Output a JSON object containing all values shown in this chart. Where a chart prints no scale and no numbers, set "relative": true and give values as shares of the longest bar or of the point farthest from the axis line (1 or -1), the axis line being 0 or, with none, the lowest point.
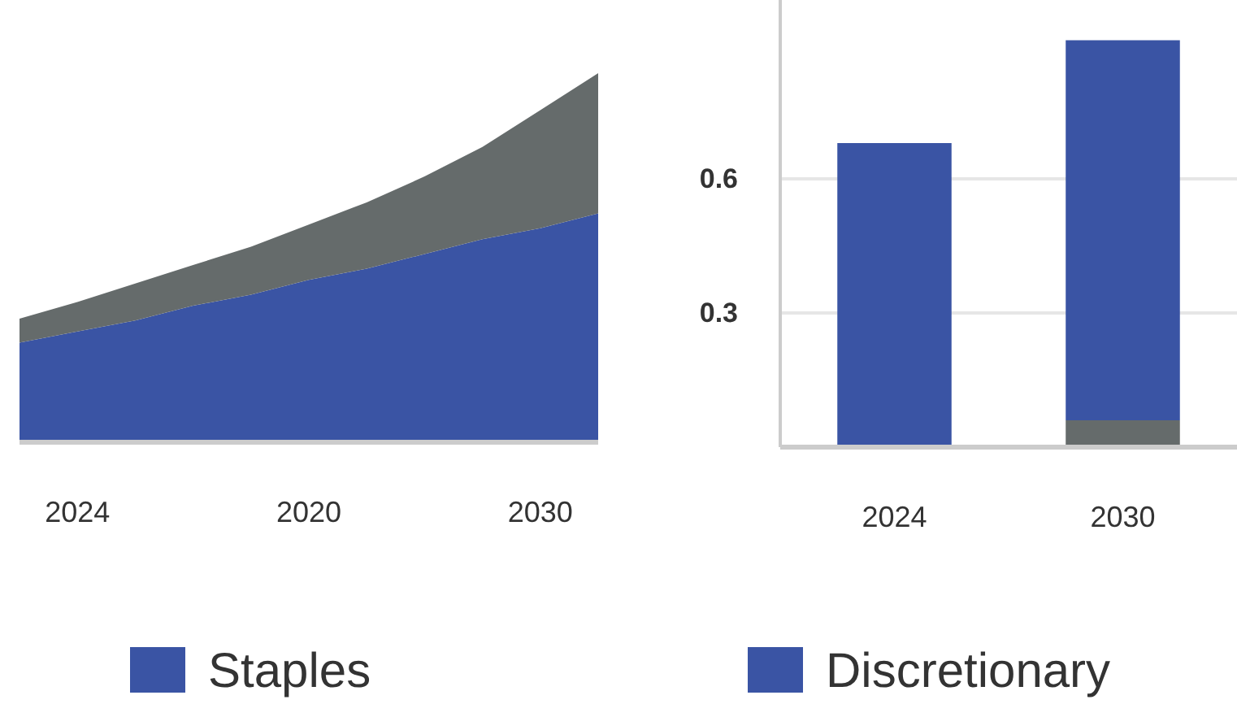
{
  "chart_data": [
    {
      "type": "area",
      "stacked": true,
      "relative": true,
      "legend": "bottom",
      "categories": [
        null,
        "2024",
        null,
        null,
        null,
        "2020",
        null,
        null,
        null,
        "2030",
        null
      ],
      "series": [
        {
          "name": "Staples",
          "color": "#3a54a4",
          "values": [
            0.27,
            0.3,
            0.33,
            0.37,
            0.4,
            0.44,
            0.47,
            0.51,
            0.55,
            0.58,
            0.62
          ]
        },
        {
          "color": "#656b6b",
          "values": [
            0.065,
            0.08,
            0.1,
            0.11,
            0.13,
            0.15,
            0.18,
            0.21,
            0.25,
            0.32,
            0.38
          ]
        }
      ]
    },
    {
      "type": "bar",
      "stacked": true,
      "legend": "bottom",
      "grid": "y",
      "categories": [
        "2024",
        "2030"
      ],
      "ylim": [
        0,
        1
      ],
      "yticks": [
        0.3,
        0.6
      ],
      "series": [
        {
          "color": "#656b6b",
          "values": [
            0,
            0.06
          ]
        },
        {
          "name": "Discretionary",
          "color": "#3a54a4",
          "values": [
            0.68,
            0.85
          ]
        }
      ]
    }
  ]
}
